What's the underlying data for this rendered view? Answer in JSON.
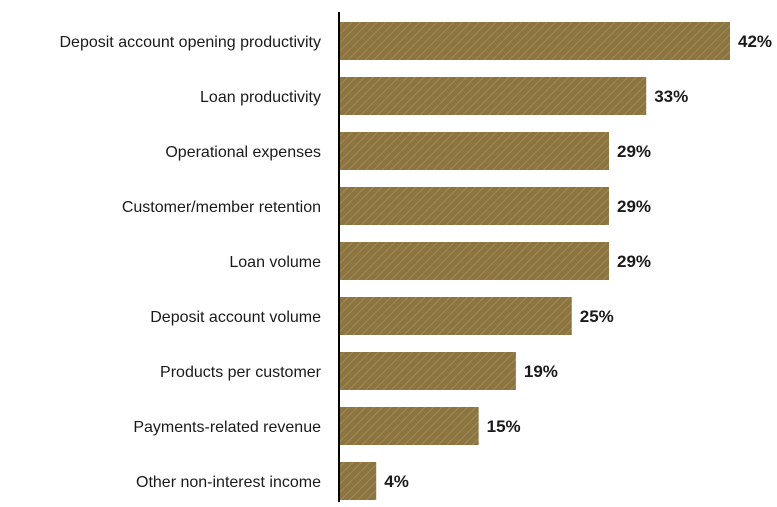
{
  "chart_data": {
    "type": "bar",
    "orientation": "horizontal",
    "categories": [
      "Deposit account opening productivity",
      "Loan productivity",
      "Operational expenses",
      "Customer/member retention",
      "Loan volume",
      "Deposit account volume",
      "Products per customer",
      "Payments-related revenue",
      "Other non-interest income"
    ],
    "values": [
      42,
      33,
      29,
      29,
      29,
      25,
      19,
      15,
      4
    ],
    "value_labels": [
      "42%",
      "33%",
      "29%",
      "29%",
      "29%",
      "25%",
      "19%",
      "15%",
      "4%"
    ],
    "unit": "%",
    "xlim": [
      0,
      42
    ],
    "grid": false,
    "legend": "none",
    "bar_color": "#8c7540",
    "bar_hatch_color": "#a08a55",
    "axis_color": "#000000"
  }
}
